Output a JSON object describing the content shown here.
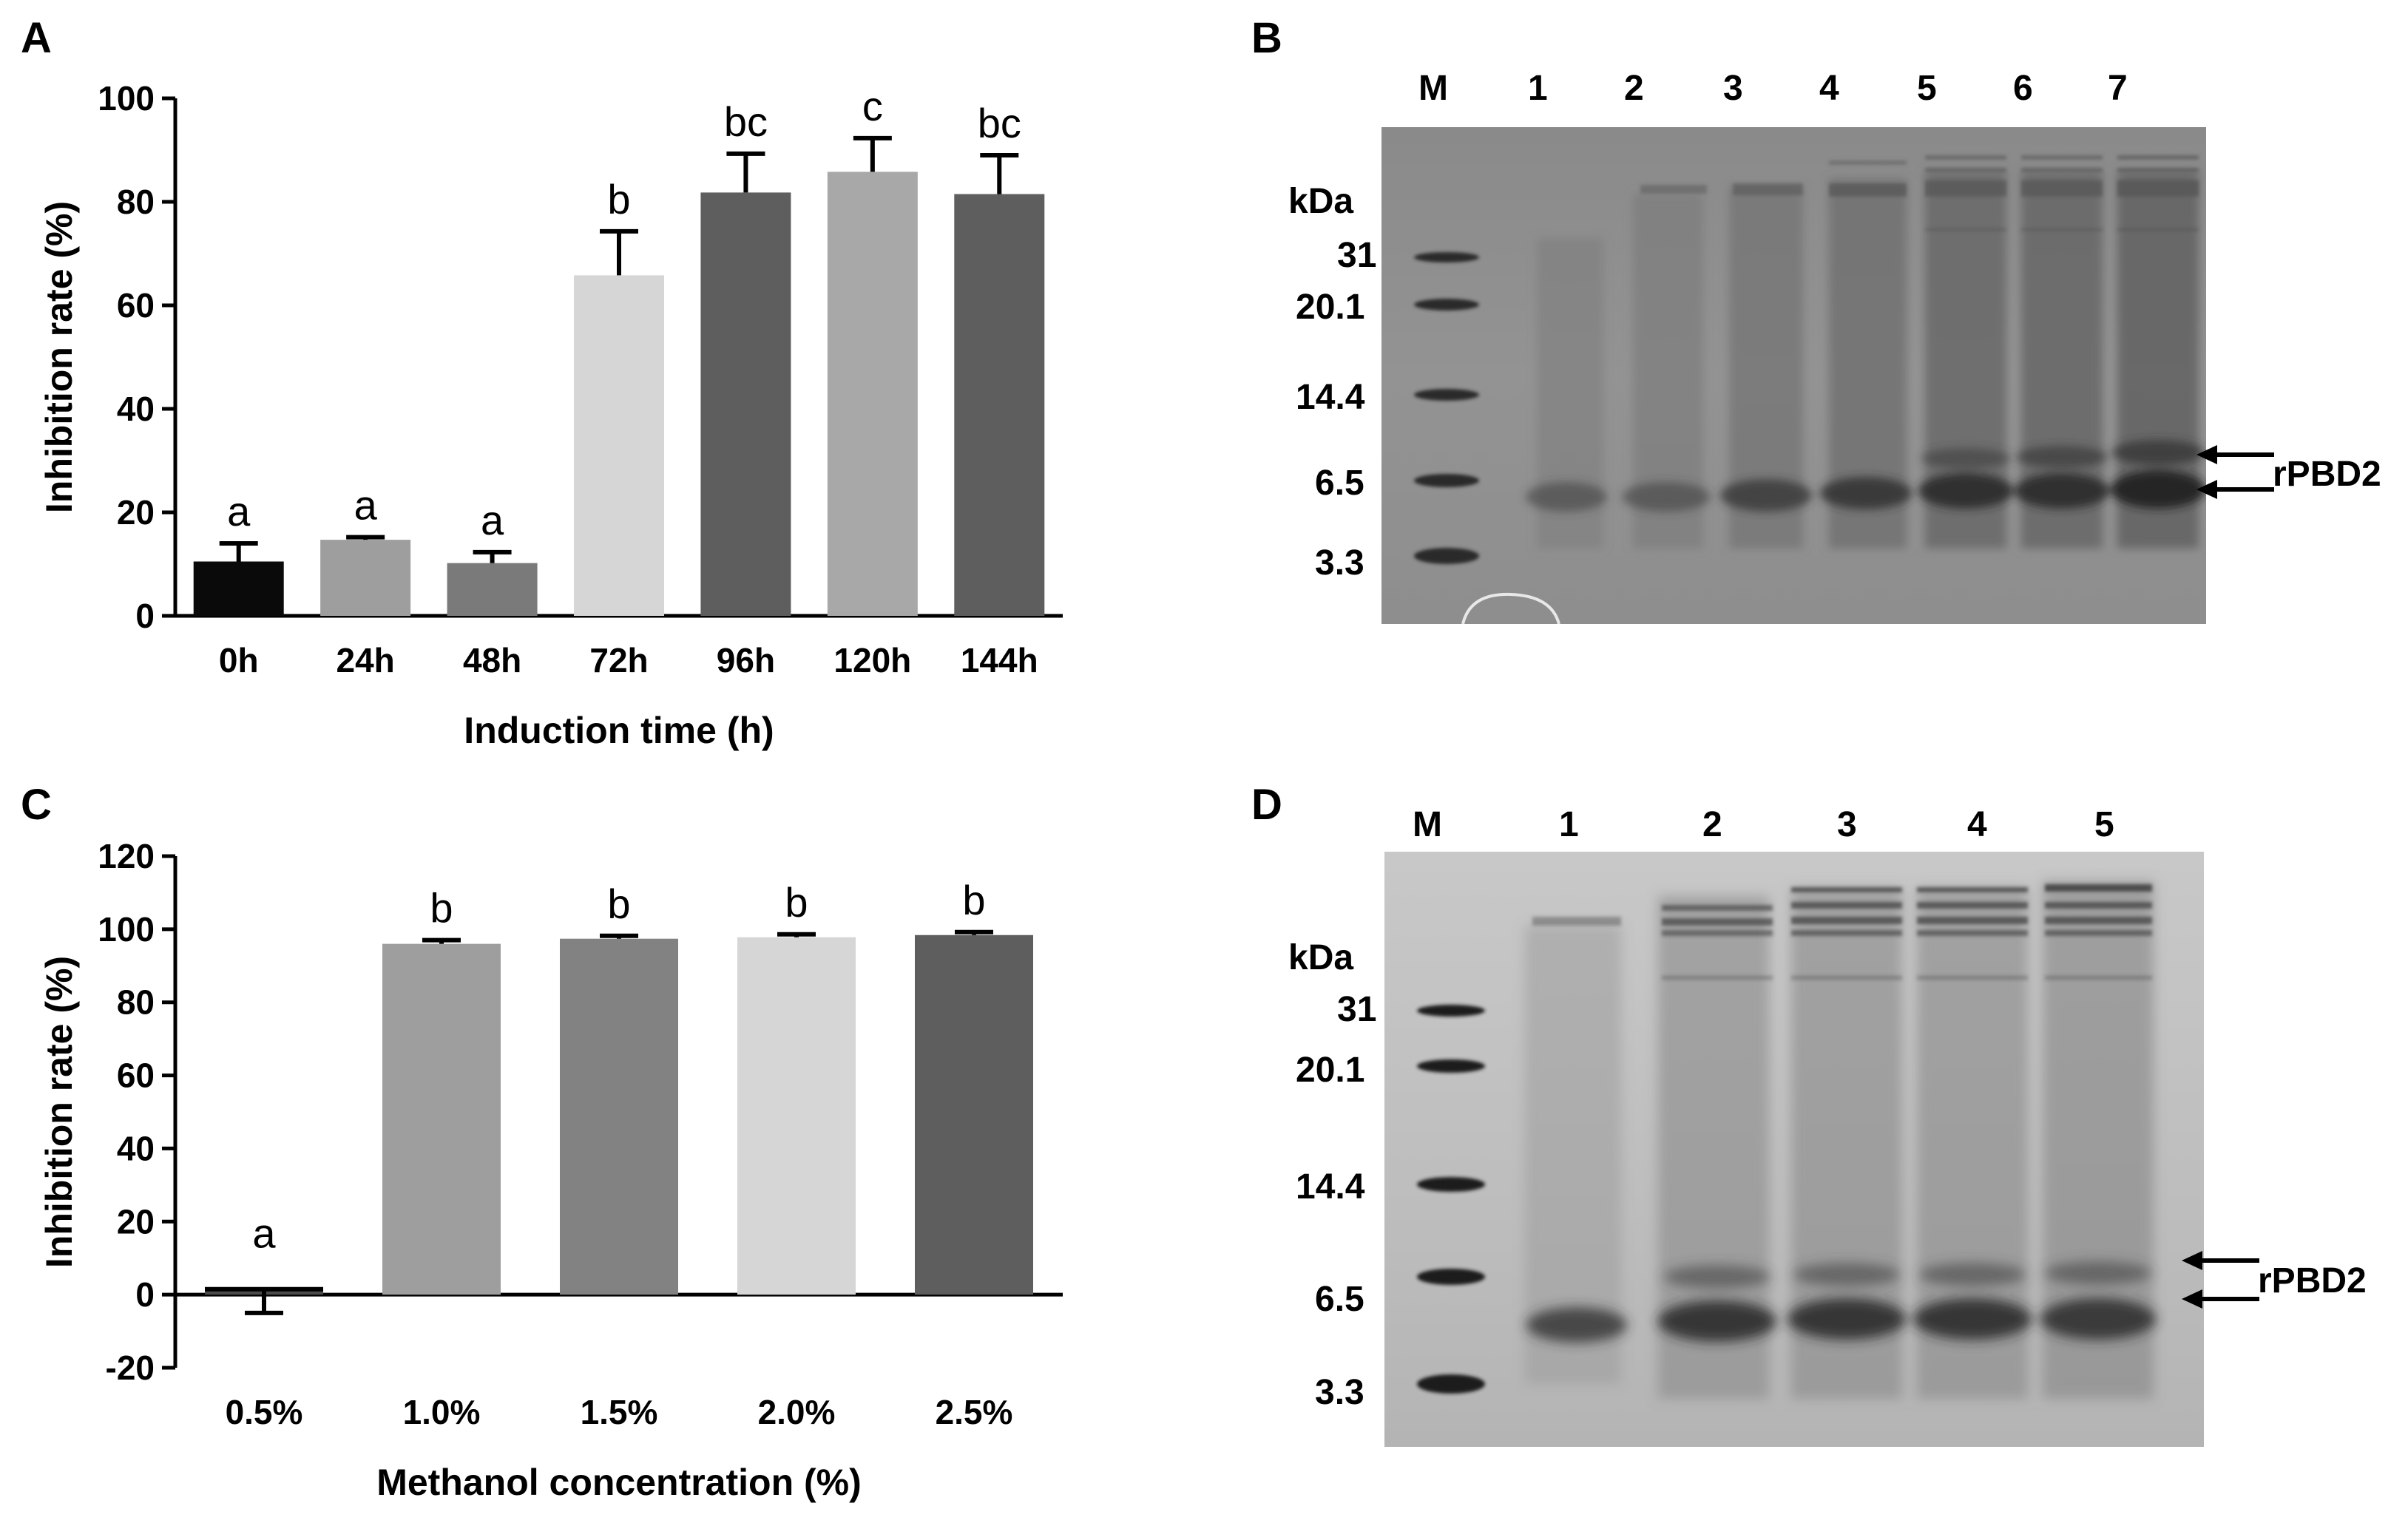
{
  "panels": {
    "a": "A",
    "b": "B",
    "c": "C",
    "d": "D"
  },
  "chart_data": [
    {
      "type": "bar",
      "categories": [
        "0h",
        "24h",
        "48h",
        "72h",
        "96h",
        "120h",
        "144h"
      ],
      "values": [
        10.5,
        14.7,
        10.2,
        65.8,
        81.8,
        85.8,
        81.5
      ],
      "errors": [
        3.5,
        0.5,
        2.1,
        8.5,
        7.5,
        6.5,
        7.5
      ],
      "letters": [
        "a",
        "a",
        "a",
        "b",
        "bc",
        "c",
        "bc"
      ],
      "colors": [
        "#0a0a0a",
        "#9e9e9e",
        "#7a7a7a",
        "#d6d6d6",
        "#5e5e5e",
        "#a8a8a8",
        "#5e5e5e"
      ],
      "title": "",
      "xlabel": "Induction time (h)",
      "ylabel": "Inhibition rate (%)",
      "ylim": [
        0,
        100
      ],
      "yticks": [
        0,
        20,
        40,
        60,
        80,
        100
      ],
      "grid": false
    },
    {
      "type": "bar",
      "categories": [
        "0.5%",
        "1.0%",
        "1.5%",
        "2.0%",
        "2.5%"
      ],
      "values": [
        1.5,
        96.0,
        97.4,
        97.8,
        98.4
      ],
      "errors": [
        6.5,
        1.0,
        0.8,
        0.8,
        0.8
      ],
      "letters": [
        "a",
        "b",
        "b",
        "b",
        "b"
      ],
      "colors": [
        "#4a4a4a",
        "#9e9e9e",
        "#828282",
        "#d6d6d6",
        "#5e5e5e"
      ],
      "title": "",
      "xlabel": "Methanol concentration (%)",
      "ylabel": "Inhibition rate (%)",
      "ylim": [
        -20,
        120
      ],
      "yticks": [
        -20,
        0,
        20,
        40,
        60,
        80,
        100,
        120
      ],
      "grid": false
    }
  ],
  "gel_b": {
    "lanes": [
      "M",
      "1",
      "2",
      "3",
      "4",
      "5",
      "6",
      "7"
    ],
    "unit": "kDa",
    "markers": [
      "31",
      "20.1",
      "14.4",
      "6.5",
      "3.3"
    ],
    "target": "rPBD2"
  },
  "gel_d": {
    "lanes": [
      "M",
      "1",
      "2",
      "3",
      "4",
      "5"
    ],
    "unit": "kDa",
    "markers": [
      "31",
      "20.1",
      "14.4",
      "6.5",
      "3.3"
    ],
    "target": "rPBD2"
  }
}
